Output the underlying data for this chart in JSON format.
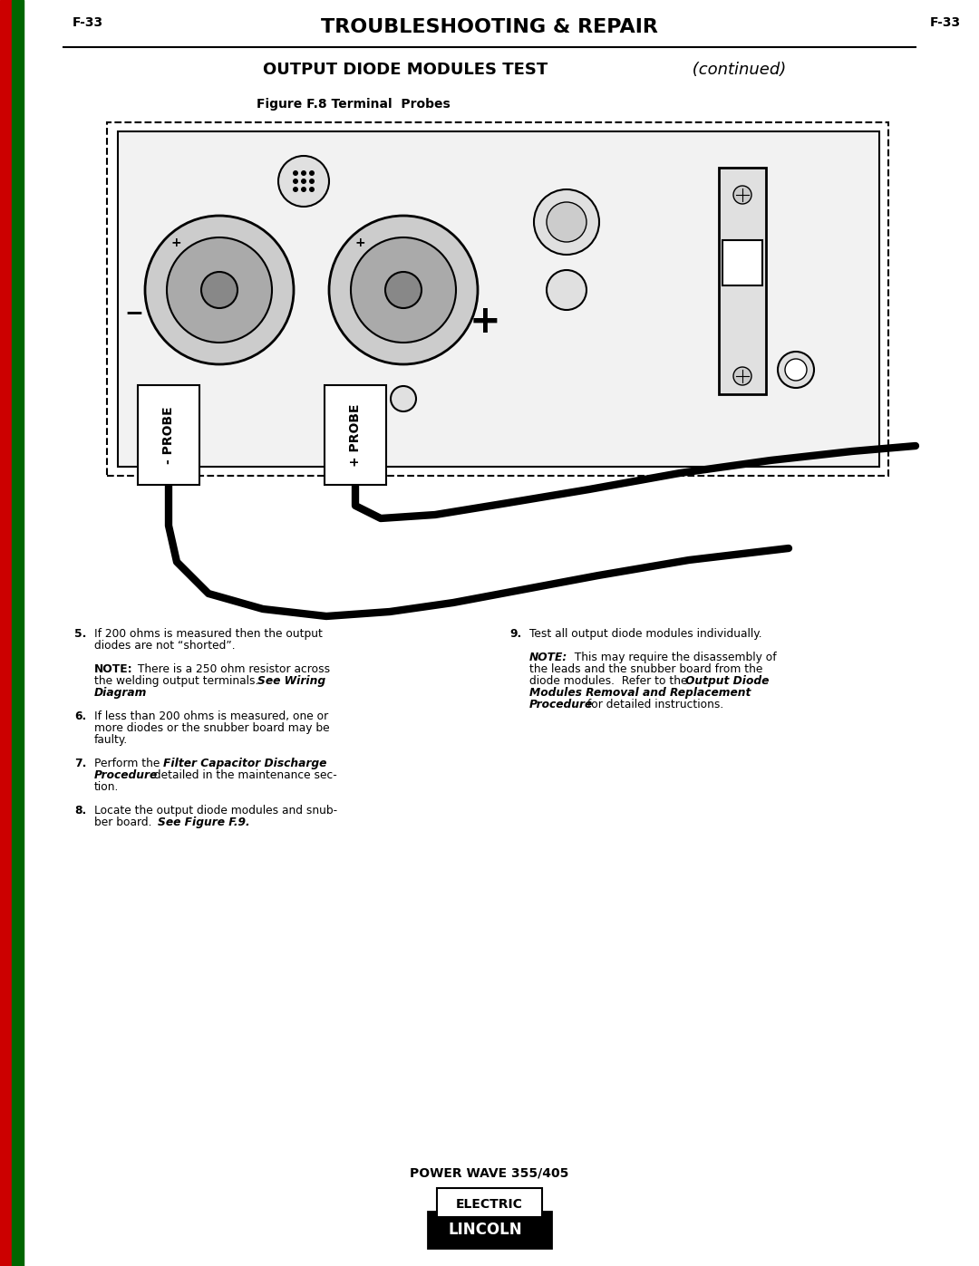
{
  "page_width": 10.8,
  "page_height": 13.97,
  "bg_color": "#ffffff",
  "header_page_num": "F-33",
  "header_title": "TROUBLESHOOTING & REPAIR",
  "section_title_bold": "OUTPUT DIODE MODULES TEST",
  "section_title_italic": " (continued)",
  "figure_caption": "Figure F.8 Terminal  Probes",
  "footer_text": "POWER WAVE 355/405"
}
